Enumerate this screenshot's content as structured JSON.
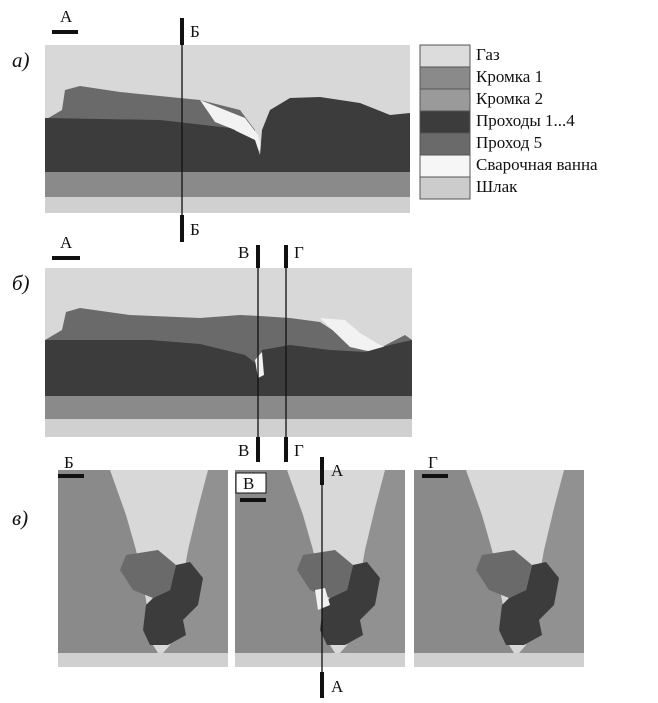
{
  "panel_a": {
    "label": "а)",
    "section": "А",
    "cut_top": "Б",
    "cut_bottom": "Б"
  },
  "legend": {
    "items": [
      "Газ",
      "Кромка 1",
      "Кромка 2",
      "Проходы 1...4",
      "Проход 5",
      "Сварочная ванна",
      "Шлак"
    ]
  },
  "panel_b": {
    "label": "б)",
    "section": "А",
    "cuts": [
      {
        "top": "В",
        "bottom": "В"
      },
      {
        "top": "Г",
        "bottom": "Г"
      }
    ]
  },
  "panel_c": {
    "label": "в)",
    "sections": [
      "Б",
      "В",
      "Г"
    ],
    "cut_top": "А",
    "cut_bottom": "А"
  }
}
